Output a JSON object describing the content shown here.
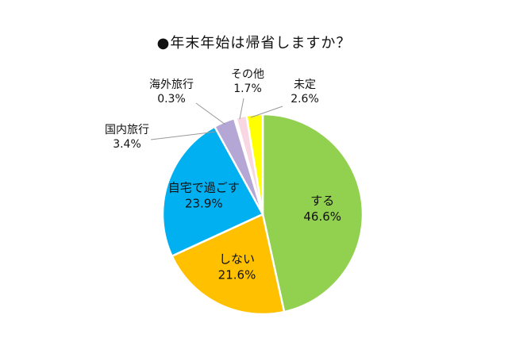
{
  "chart_data": {
    "type": "pie",
    "title": "●年末年始は帰省しますか？",
    "start_angle_deg": 0,
    "direction": "clockwise",
    "slices": [
      {
        "label": "する",
        "value": 46.6,
        "value_text": "46.6%",
        "color": "#92d050",
        "label_placement": "inside"
      },
      {
        "label": "しない",
        "value": 21.6,
        "value_text": "21.6%",
        "color": "#ffc000",
        "label_placement": "inside"
      },
      {
        "label": "自宅で過ごす",
        "value": 23.9,
        "value_text": "23.9%",
        "color": "#00b0f0",
        "label_placement": "inside"
      },
      {
        "label": "国内旅行",
        "value": 3.4,
        "value_text": "3.4%",
        "color": "#b4a7d6",
        "label_placement": "outside"
      },
      {
        "label": "海外旅行",
        "value": 0.3,
        "value_text": "0.3%",
        "color": "#c9e7f5",
        "label_placement": "outside"
      },
      {
        "label": "その他",
        "value": 1.7,
        "value_text": "1.7%",
        "color": "#f8d7e3",
        "label_placement": "outside"
      },
      {
        "label": "未定",
        "value": 2.6,
        "value_text": "2.6%",
        "color": "#ffff00",
        "label_placement": "outside"
      }
    ]
  }
}
